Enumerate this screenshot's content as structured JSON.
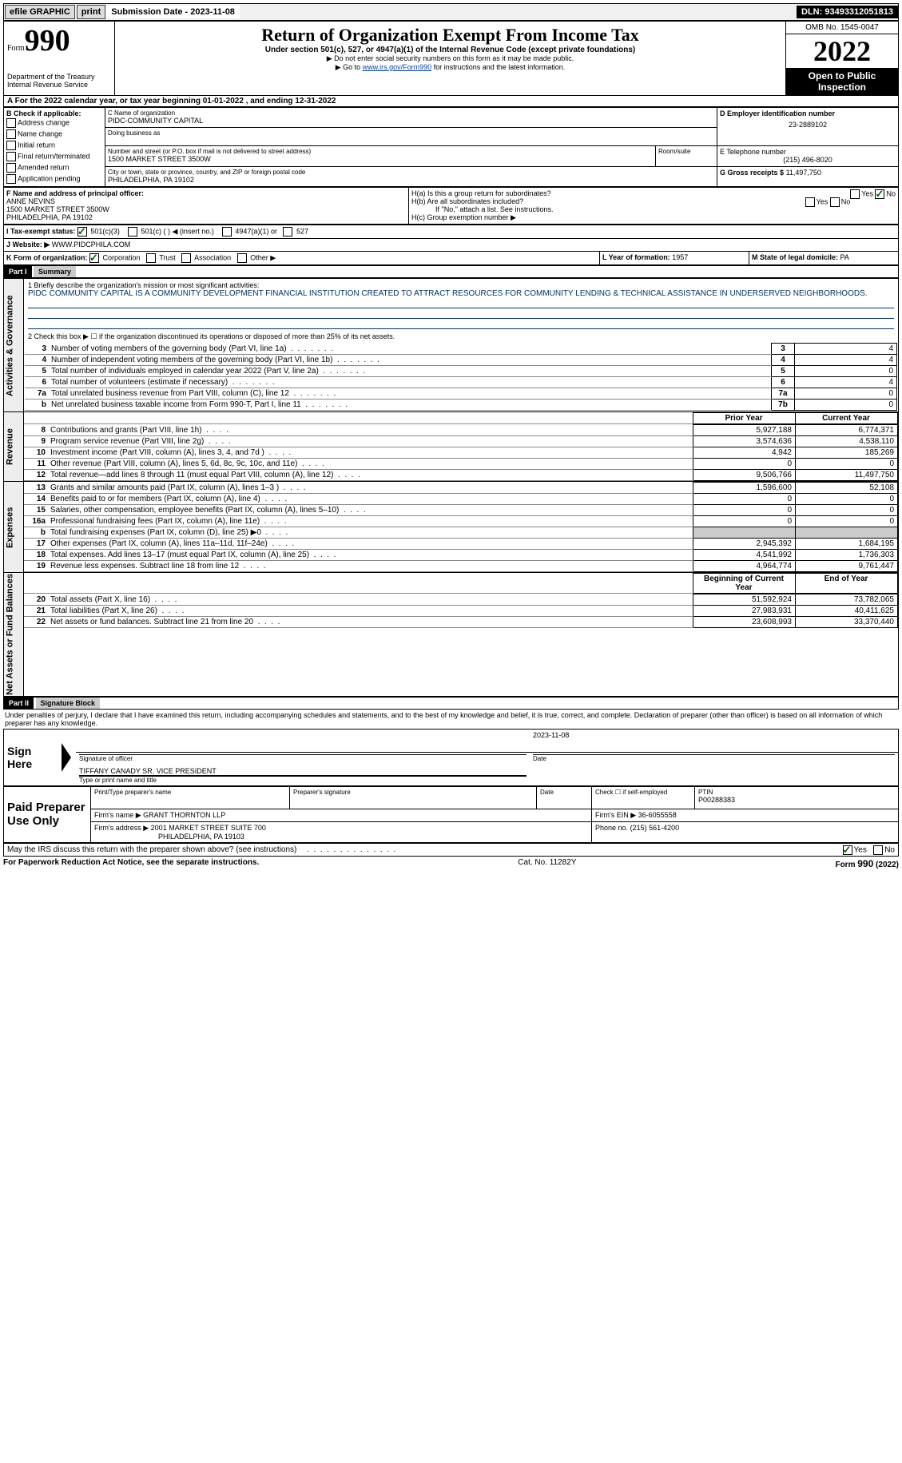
{
  "topbar": {
    "efile": "efile GRAPHIC",
    "print": "print",
    "submission": "Submission Date - 2023-11-08",
    "dln": "DLN: 93493312051813"
  },
  "header": {
    "form_label": "Form",
    "form_num": "990",
    "dept": "Department of the Treasury",
    "irs": "Internal Revenue Service",
    "title": "Return of Organization Exempt From Income Tax",
    "subtitle": "Under section 501(c), 527, or 4947(a)(1) of the Internal Revenue Code (except private foundations)",
    "note1": "▶ Do not enter social security numbers on this form as it may be made public.",
    "note2_pre": "▶ Go to ",
    "note2_link": "www.irs.gov/Form990",
    "note2_post": " for instructions and the latest information.",
    "omb": "OMB No. 1545-0047",
    "year": "2022",
    "open_pub": "Open to Public Inspection"
  },
  "period": "A For the 2022 calendar year, or tax year beginning 01-01-2022    , and ending 12-31-2022",
  "section_b": {
    "label": "B Check if applicable:",
    "items": [
      "Address change",
      "Name change",
      "Initial return",
      "Final return/terminated",
      "Amended return",
      "Application pending"
    ]
  },
  "section_c": {
    "name_label": "C Name of organization",
    "name": "PIDC-COMMUNITY CAPITAL",
    "dba_label": "Doing business as",
    "street_label": "Number and street (or P.O. box if mail is not delivered to street address)",
    "street": "1500 MARKET STREET 3500W",
    "suite_label": "Room/suite",
    "city_label": "City or town, state or province, country, and ZIP or foreign postal code",
    "city": "PHILADELPHIA, PA  19102"
  },
  "section_d": {
    "label": "D Employer identification number",
    "value": "23-2889102"
  },
  "section_e": {
    "label": "E Telephone number",
    "value": "(215) 496-8020"
  },
  "section_g": {
    "label": "G Gross receipts $",
    "value": "11,497,750"
  },
  "section_f": {
    "label": "F Name and address of principal officer:",
    "name": "ANNE NEVINS",
    "addr1": "1500 MARKET STREET 3500W",
    "addr2": "PHILADELPHIA, PA  19102"
  },
  "section_h": {
    "ha": "H(a)  Is this a group return for subordinates?",
    "hb": "H(b)  Are all subordinates included?",
    "hb_note": "If \"No,\" attach a list. See instructions.",
    "hc": "H(c)  Group exemption number ▶",
    "yes": "Yes",
    "no": "No"
  },
  "section_i": {
    "label": "I    Tax-exempt status:",
    "o1": "501(c)(3)",
    "o2": "501(c) (   ) ◀ (insert no.)",
    "o3": "4947(a)(1) or",
    "o4": "527"
  },
  "section_j": {
    "label": "J   Website: ▶",
    "value": "WWW.PIDCPHILA.COM"
  },
  "section_k": {
    "label": "K Form of organization:",
    "o1": "Corporation",
    "o2": "Trust",
    "o3": "Association",
    "o4": "Other ▶"
  },
  "section_l": {
    "label": "L Year of formation:",
    "value": "1957"
  },
  "section_m": {
    "label": "M State of legal domicile:",
    "value": "PA"
  },
  "part1": {
    "label": "Part I",
    "title": "Summary",
    "q1_label": "1  Briefly describe the organization's mission or most significant activities:",
    "q1_text": "PIDC COMMUNITY CAPITAL IS A COMMUNITY DEVELOPMENT FINANCIAL INSTITUTION CREATED TO ATTRACT RESOURCES FOR COMMUNITY LENDING & TECHNICAL ASSISTANCE IN UNDERSERVED NEIGHBORHOODS.",
    "q2": "2    Check this box ▶ ☐  if the organization discontinued its operations or disposed of more than 25% of its net assets.",
    "rows_top": [
      {
        "n": "3",
        "t": "Number of voting members of the governing body (Part VI, line 1a)",
        "b": "3",
        "v": "4"
      },
      {
        "n": "4",
        "t": "Number of independent voting members of the governing body (Part VI, line 1b)",
        "b": "4",
        "v": "4"
      },
      {
        "n": "5",
        "t": "Total number of individuals employed in calendar year 2022 (Part V, line 2a)",
        "b": "5",
        "v": "0"
      },
      {
        "n": "6",
        "t": "Total number of volunteers (estimate if necessary)",
        "b": "6",
        "v": "4"
      },
      {
        "n": "7a",
        "t": "Total unrelated business revenue from Part VIII, column (C), line 12",
        "b": "7a",
        "v": "0"
      },
      {
        "n": "b",
        "t": "Net unrelated business taxable income from Form 990-T, Part I, line 11",
        "b": "7b",
        "v": "0"
      }
    ],
    "col_prior": "Prior Year",
    "col_current": "Current Year",
    "rows_rev": [
      {
        "n": "8",
        "t": "Contributions and grants (Part VIII, line 1h)",
        "p": "5,927,188",
        "c": "6,774,371"
      },
      {
        "n": "9",
        "t": "Program service revenue (Part VIII, line 2g)",
        "p": "3,574,636",
        "c": "4,538,110"
      },
      {
        "n": "10",
        "t": "Investment income (Part VIII, column (A), lines 3, 4, and 7d )",
        "p": "4,942",
        "c": "185,269"
      },
      {
        "n": "11",
        "t": "Other revenue (Part VIII, column (A), lines 5, 6d, 8c, 9c, 10c, and 11e)",
        "p": "0",
        "c": "0"
      },
      {
        "n": "12",
        "t": "Total revenue—add lines 8 through 11 (must equal Part VIII, column (A), line 12)",
        "p": "9,506,766",
        "c": "11,497,750"
      }
    ],
    "rows_exp": [
      {
        "n": "13",
        "t": "Grants and similar amounts paid (Part IX, column (A), lines 1–3 )",
        "p": "1,596,600",
        "c": "52,108"
      },
      {
        "n": "14",
        "t": "Benefits paid to or for members (Part IX, column (A), line 4)",
        "p": "0",
        "c": "0"
      },
      {
        "n": "15",
        "t": "Salaries, other compensation, employee benefits (Part IX, column (A), lines 5–10)",
        "p": "0",
        "c": "0"
      },
      {
        "n": "16a",
        "t": "Professional fundraising fees (Part IX, column (A), line 11e)",
        "p": "0",
        "c": "0"
      },
      {
        "n": "b",
        "t": "Total fundraising expenses (Part IX, column (D), line 25) ▶0",
        "p": "",
        "c": "",
        "shaded": true
      },
      {
        "n": "17",
        "t": "Other expenses (Part IX, column (A), lines 11a–11d, 11f–24e)",
        "p": "2,945,392",
        "c": "1,684,195"
      },
      {
        "n": "18",
        "t": "Total expenses. Add lines 13–17 (must equal Part IX, column (A), line 25)",
        "p": "4,541,992",
        "c": "1,736,303"
      },
      {
        "n": "19",
        "t": "Revenue less expenses. Subtract line 18 from line 12",
        "p": "4,964,774",
        "c": "9,761,447"
      }
    ],
    "col_begin": "Beginning of Current Year",
    "col_end": "End of Year",
    "rows_net": [
      {
        "n": "20",
        "t": "Total assets (Part X, line 16)",
        "p": "51,592,924",
        "c": "73,782,065"
      },
      {
        "n": "21",
        "t": "Total liabilities (Part X, line 26)",
        "p": "27,983,931",
        "c": "40,411,625"
      },
      {
        "n": "22",
        "t": "Net assets or fund balances. Subtract line 21 from line 20",
        "p": "23,608,993",
        "c": "33,370,440"
      }
    ]
  },
  "part2": {
    "label": "Part II",
    "title": "Signature Block",
    "decl": "Under penalties of perjury, I declare that I have examined this return, including accompanying schedules and statements, and to the best of my knowledge and belief, it is true, correct, and complete. Declaration of preparer (other than officer) is based on all information of which preparer has any knowledge.",
    "sign_here": "Sign Here",
    "sig_officer": "Signature of officer",
    "sig_date": "2023-11-08",
    "date_label": "Date",
    "officer_name": "TIFFANY CANADY SR. VICE PRESIDENT",
    "officer_label": "Type or print name and title",
    "paid": "Paid Preparer Use Only",
    "prep_name_label": "Print/Type preparer's name",
    "prep_sig_label": "Preparer's signature",
    "check_self": "Check ☐ if self-employed",
    "ptin_label": "PTIN",
    "ptin": "P00288383",
    "firm_name_label": "Firm's name    ▶",
    "firm_name": "GRANT THORNTON LLP",
    "firm_ein_label": "Firm's EIN ▶",
    "firm_ein": "36-6055558",
    "firm_addr_label": "Firm's address ▶",
    "firm_addr1": "2001 MARKET STREET SUITE 700",
    "firm_addr2": "PHILADELPHIA, PA  19103",
    "phone_label": "Phone no.",
    "phone": "(215) 561-4200",
    "discuss": "May the IRS discuss this return with the preparer shown above? (see instructions)"
  },
  "footer": {
    "paperwork": "For Paperwork Reduction Act Notice, see the separate instructions.",
    "cat": "Cat. No. 11282Y",
    "form": "Form 990 (2022)"
  },
  "side_labels": {
    "gov": "Activities & Governance",
    "rev": "Revenue",
    "exp": "Expenses",
    "net": "Net Assets or Fund Balances"
  }
}
